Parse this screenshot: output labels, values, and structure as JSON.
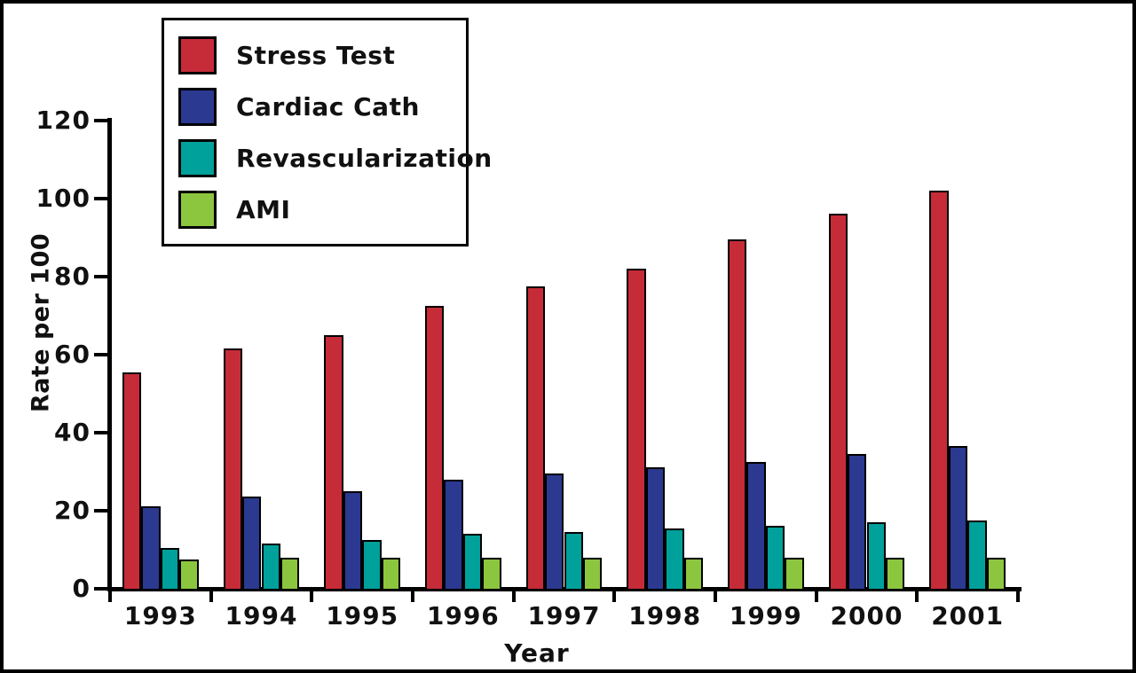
{
  "figure": {
    "background_color": "#FFFFFF",
    "frame_color": "#000000",
    "axis_color": "#000000"
  },
  "chart_data": {
    "type": "bar",
    "title": "",
    "xlabel": "Year",
    "ylabel": "Rate per 100",
    "categories": [
      "1993",
      "1994",
      "1995",
      "1996",
      "1997",
      "1998",
      "1999",
      "2000",
      "2001"
    ],
    "yticks": [
      0,
      20,
      40,
      60,
      80,
      100,
      120
    ],
    "ylim": [
      0,
      130
    ],
    "grid": false,
    "legend_position": "top-left",
    "series": [
      {
        "name": "Stress Test",
        "color": "#C62B38",
        "values": [
          56,
          62,
          65.5,
          73,
          78,
          82.5,
          90,
          96.5,
          102.5
        ]
      },
      {
        "name": "Cardiac Cath",
        "color": "#2B3990",
        "values": [
          21.5,
          24,
          25.5,
          28.5,
          30,
          31.5,
          33,
          35,
          37
        ]
      },
      {
        "name": "Revascularization",
        "color": "#00A09B",
        "values": [
          11,
          12,
          13,
          14.5,
          15,
          16,
          16.5,
          17.5,
          18
        ]
      },
      {
        "name": "AMI",
        "color": "#8CC63F",
        "values": [
          8,
          8.5,
          8.5,
          8.5,
          8.5,
          8.5,
          8.5,
          8.5,
          8.5
        ]
      }
    ]
  }
}
